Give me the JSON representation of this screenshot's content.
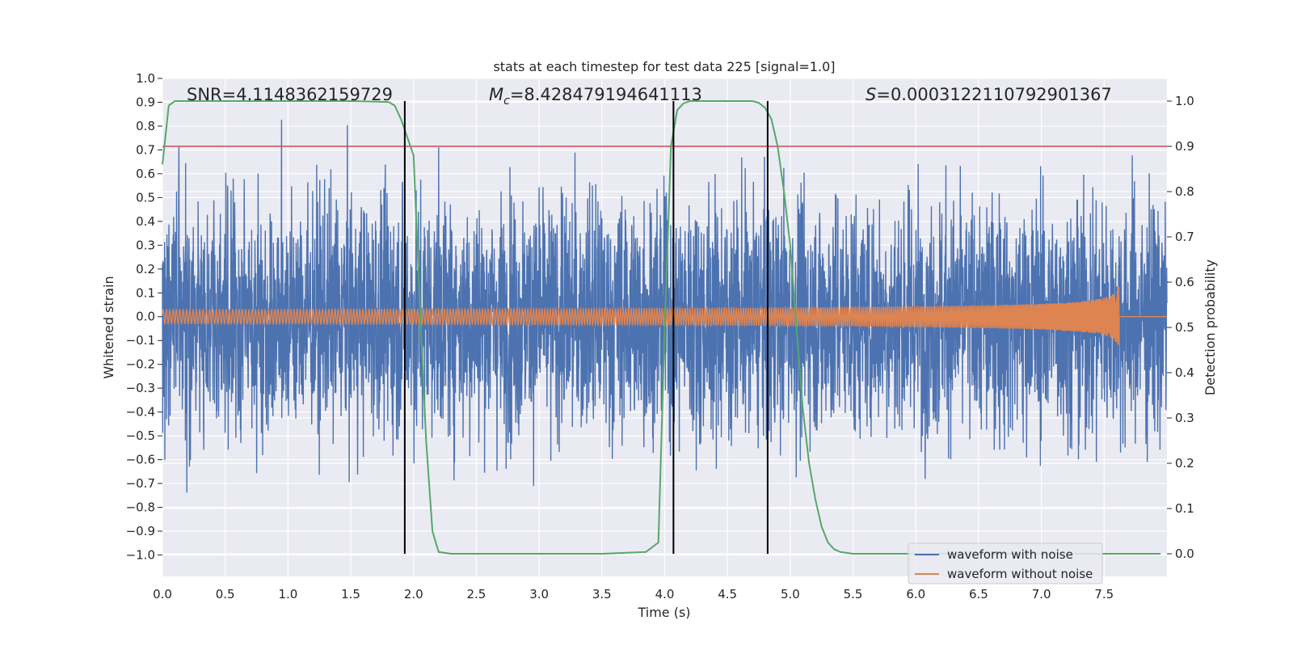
{
  "chart_data": {
    "type": "line",
    "title": "stats at each timestep for test data 225 [signal=1.0]",
    "xlabel": "Time (s)",
    "ylabel": "Whitened strain",
    "y2label": "Detection probability",
    "xlim": [
      0.0,
      8.0
    ],
    "ylim": [
      -1.09,
      1.0
    ],
    "y2lim": [
      -0.05,
      1.05
    ],
    "xticks": [
      0.0,
      0.5,
      1.0,
      1.5,
      2.0,
      2.5,
      3.0,
      3.5,
      4.0,
      4.5,
      5.0,
      5.5,
      6.0,
      6.5,
      7.0,
      7.5
    ],
    "xtick_labels": [
      "0.0",
      "0.5",
      "1.0",
      "1.5",
      "2.0",
      "2.5",
      "3.0",
      "3.5",
      "4.0",
      "4.5",
      "5.0",
      "5.5",
      "6.0",
      "6.5",
      "7.0",
      "7.5"
    ],
    "yticks": [
      1.0,
      0.9,
      0.8,
      0.7,
      0.6,
      0.5,
      0.4,
      0.3,
      0.2,
      0.1,
      0.0,
      -0.1,
      -0.2,
      -0.3,
      -0.4,
      -0.5,
      -0.6,
      -0.7,
      -0.8,
      -0.9,
      -1.0
    ],
    "ytick_labels": [
      "1.0",
      "0.9",
      "0.8",
      "0.7",
      "0.6",
      "0.5",
      "0.4",
      "0.3",
      "0.2",
      "0.1",
      "0.0",
      "−0.1",
      "−0.2",
      "−0.3",
      "−0.4",
      "−0.5",
      "−0.6",
      "−0.7",
      "−0.8",
      "−0.9",
      "−1.0"
    ],
    "y2ticks": [
      1.0,
      0.9,
      0.8,
      0.7,
      0.6,
      0.5,
      0.4,
      0.3,
      0.2,
      0.1,
      0.0
    ],
    "y2tick_labels": [
      "1.0",
      "0.9",
      "0.8",
      "0.7",
      "0.6",
      "0.5",
      "0.4",
      "0.3",
      "0.2",
      "0.1",
      "0.0"
    ],
    "annotations": {
      "snr": "SNR=4.1148362159729",
      "mc_prefix": "M",
      "mc_sub": "c",
      "mc_value": "=8.428479194641113",
      "s_prefix": "S",
      "s_value": "=0.0003122110792901367"
    },
    "threshold": {
      "value": 0.9,
      "axis": "y2",
      "color": "#c44e52"
    },
    "event_lines": [
      1.93,
      4.07,
      4.82
    ],
    "series": [
      {
        "name": "waveform with noise",
        "color": "#4c72b0",
        "kind": "noise",
        "amplitude_range": [
          -0.8,
          0.87
        ]
      },
      {
        "name": "waveform without noise",
        "color": "#dd8452",
        "kind": "chirp",
        "merger_time": 7.62,
        "peak_amplitude": 0.13
      },
      {
        "name": "detection probability",
        "color": "#55a868",
        "axis": "y2",
        "x": [
          0.0,
          0.05,
          0.1,
          0.2,
          0.5,
          1.0,
          1.5,
          1.8,
          1.85,
          1.9,
          1.95,
          2.0,
          2.05,
          2.1,
          2.15,
          2.2,
          2.3,
          2.5,
          3.0,
          3.5,
          3.85,
          3.95,
          4.0,
          4.05,
          4.1,
          4.15,
          4.2,
          4.3,
          4.5,
          4.7,
          4.75,
          4.8,
          4.85,
          4.9,
          4.95,
          5.0,
          5.05,
          5.1,
          5.15,
          5.2,
          5.25,
          5.3,
          5.35,
          5.4,
          5.5,
          6.0,
          7.0,
          7.95
        ],
        "values": [
          0.86,
          0.99,
          1.0,
          1.0,
          1.0,
          1.0,
          1.0,
          0.998,
          0.99,
          0.96,
          0.92,
          0.88,
          0.55,
          0.25,
          0.05,
          0.004,
          0.0,
          0.0,
          0.0,
          0.0,
          0.004,
          0.025,
          0.5,
          0.9,
          0.98,
          0.995,
          1.0,
          1.0,
          1.0,
          1.0,
          0.996,
          0.985,
          0.96,
          0.9,
          0.8,
          0.68,
          0.5,
          0.32,
          0.2,
          0.12,
          0.06,
          0.025,
          0.01,
          0.004,
          0.0,
          0.0,
          0.0,
          0.0
        ]
      }
    ],
    "legend": {
      "position": "lower-right",
      "entries": [
        "waveform with noise",
        "waveform without noise"
      ]
    }
  }
}
